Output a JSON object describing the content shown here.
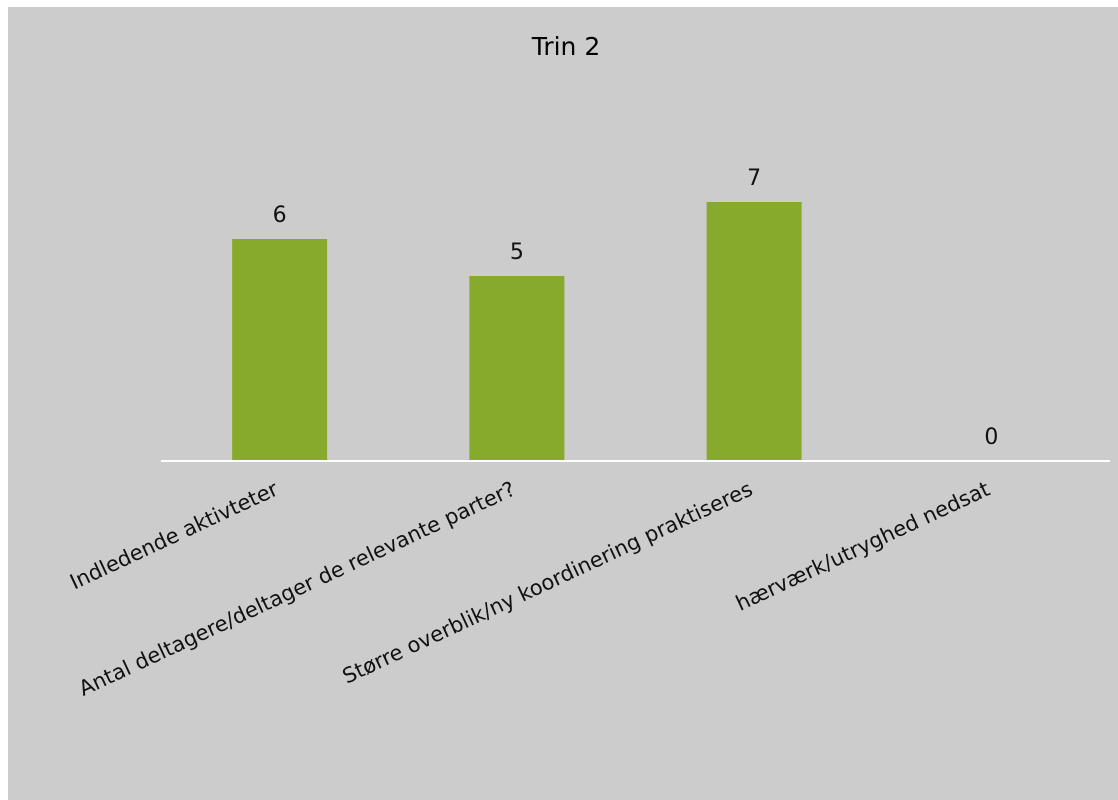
{
  "chart_data": {
    "type": "bar",
    "title": "Trin 2",
    "categories": [
      "Indledende aktivteter",
      "Antal deltagere/deltager de relevante parter?",
      "Større overblik/ny koordinering praktiseres",
      "hærværk/utryghed nedsat"
    ],
    "values": [
      6,
      5,
      7,
      0
    ],
    "ylim": [
      0,
      10
    ],
    "grid": false,
    "legend": "none",
    "bar_color": "#88aa2c",
    "background_color": "#cccccc",
    "axis_color": "#ffffff"
  }
}
